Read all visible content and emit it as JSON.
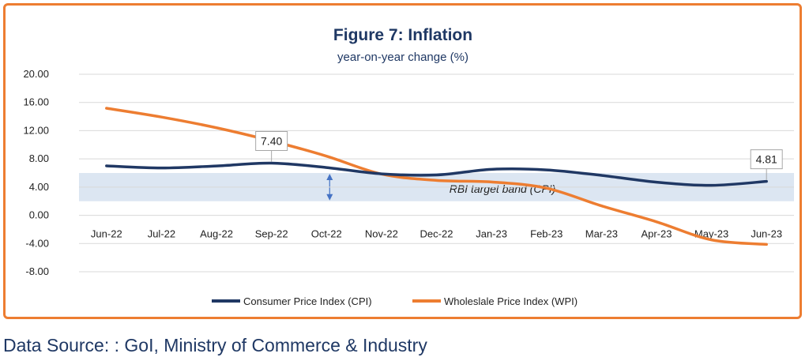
{
  "chart_data": {
    "type": "line",
    "title": "Figure 7: Inflation",
    "subtitle": "year-on-year change (%)",
    "categories": [
      "Jun-22",
      "Jul-22",
      "Aug-22",
      "Sep-22",
      "Oct-22",
      "Nov-22",
      "Dec-22",
      "Jan-23",
      "Feb-23",
      "Mar-23",
      "Apr-23",
      "May-23",
      "Jun-23"
    ],
    "y_ticks": [
      "20.00",
      "16.00",
      "12.00",
      "8.00",
      "4.00",
      "0.00",
      "-4.00",
      "-8.00"
    ],
    "ylim": [
      -8,
      20
    ],
    "series": [
      {
        "name": "Consumer Price Index (CPI)",
        "color": "#203864",
        "values": [
          7.01,
          6.71,
          7.0,
          7.4,
          6.77,
          5.88,
          5.72,
          6.52,
          6.44,
          5.66,
          4.7,
          4.25,
          4.81
        ]
      },
      {
        "name": "Wholeslale Price Index (WPI)",
        "color": "#ED7D31",
        "values": [
          15.18,
          13.93,
          12.41,
          10.55,
          8.39,
          5.85,
          4.95,
          4.73,
          3.85,
          1.34,
          -0.92,
          -3.48,
          -4.12
        ]
      }
    ],
    "band": {
      "label": "RBI target band (CPI)",
      "from": 2,
      "to": 6,
      "color": "#DCE6F2"
    },
    "callouts": [
      {
        "text": "7.40",
        "series": 0,
        "index": 3
      },
      {
        "text": "4.81",
        "series": 0,
        "index": 12
      }
    ],
    "legend_position": "bottom",
    "grid": "horizontal"
  },
  "source_text": "Data Source: : GoI, Ministry of Commerce & Industry"
}
